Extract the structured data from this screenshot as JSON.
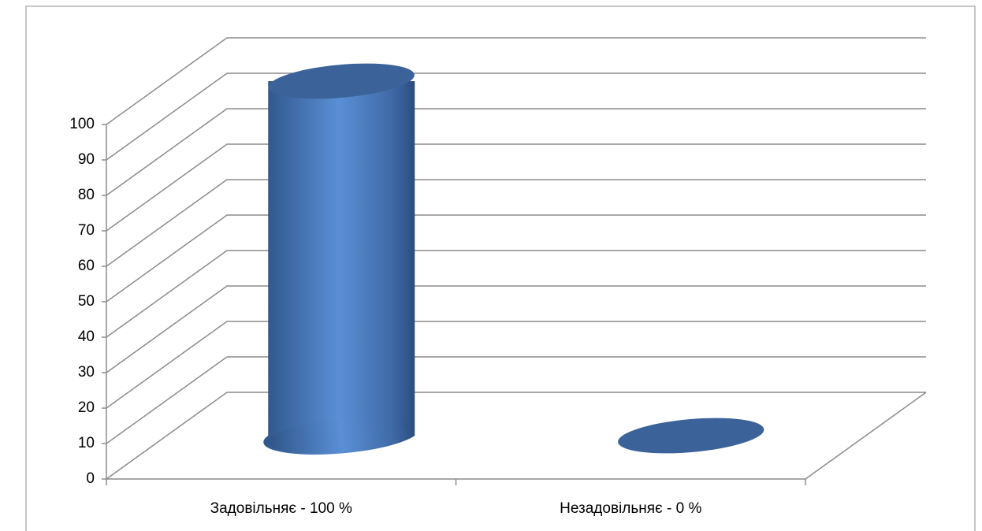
{
  "chart_data": {
    "type": "bar3d_cylinder",
    "categories": [
      "Задовільняє - 100 %",
      "Незадовільняє - 0 %"
    ],
    "values": [
      100,
      0
    ],
    "color": "#4f81bd",
    "ylim": [
      0,
      100
    ],
    "yticks": [
      0,
      10,
      20,
      30,
      40,
      50,
      60,
      70,
      80,
      90,
      100
    ],
    "grid": true
  }
}
